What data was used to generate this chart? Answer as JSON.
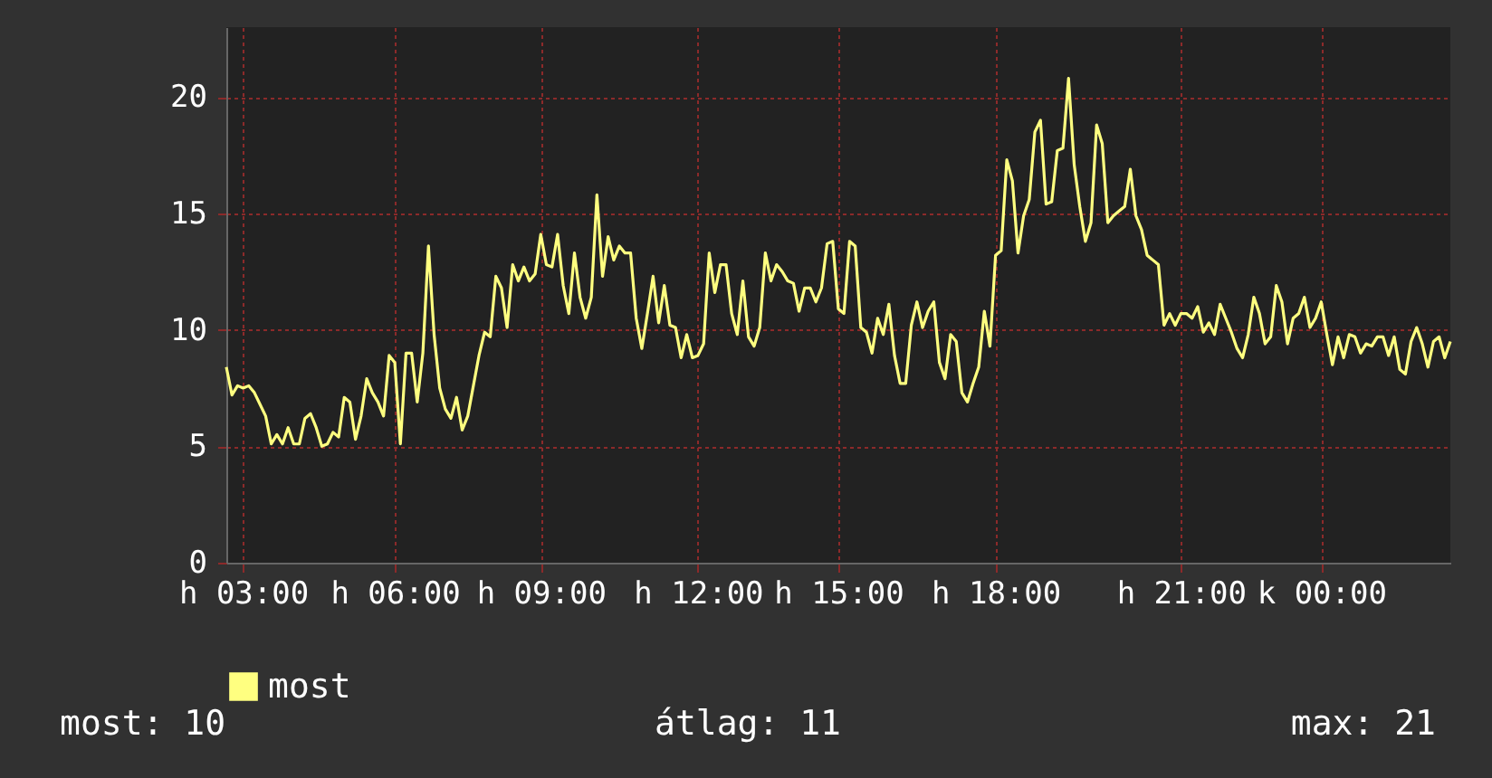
{
  "chart_data": {
    "type": "line",
    "legend": "bottom",
    "grid": true,
    "marker": "none",
    "line_style": "solid",
    "categories": [
      null,
      null,
      null,
      "h 03:00",
      null,
      null,
      null,
      null,
      null,
      null,
      null,
      null,
      null,
      null,
      null,
      null,
      null,
      null,
      null,
      null,
      null,
      null,
      null,
      null,
      null,
      null,
      null,
      null,
      null,
      null,
      "h 06:00",
      null,
      null,
      null,
      null,
      null,
      null,
      null,
      null,
      null,
      null,
      null,
      null,
      null,
      null,
      null,
      null,
      null,
      null,
      null,
      null,
      null,
      null,
      null,
      null,
      null,
      "h 09:00",
      null,
      null,
      null,
      null,
      null,
      null,
      null,
      null,
      null,
      null,
      null,
      null,
      null,
      null,
      null,
      null,
      null,
      null,
      null,
      null,
      null,
      null,
      null,
      null,
      null,
      null,
      null,
      "h 12:00",
      null,
      null,
      null,
      null,
      null,
      null,
      null,
      null,
      null,
      null,
      null,
      null,
      null,
      null,
      null,
      null,
      null,
      null,
      null,
      null,
      null,
      null,
      null,
      null,
      "h 15:00",
      null,
      null,
      null,
      null,
      null,
      null,
      null,
      null,
      null,
      null,
      null,
      null,
      null,
      null,
      null,
      null,
      null,
      null,
      null,
      null,
      null,
      null,
      null,
      null,
      null,
      null,
      null,
      "h 18:00",
      null,
      null,
      null,
      null,
      null,
      null,
      null,
      null,
      null,
      null,
      null,
      null,
      null,
      null,
      null,
      null,
      null,
      null,
      null,
      null,
      null,
      null,
      null,
      null,
      null,
      null,
      null,
      null,
      null,
      null,
      null,
      null,
      "h 21:00",
      null,
      null,
      null,
      null,
      null,
      null,
      null,
      null,
      null,
      null,
      null,
      null,
      null,
      null,
      null,
      null,
      null,
      null,
      null,
      null,
      null,
      null,
      null,
      null,
      "k 00:00",
      null,
      null,
      null,
      null,
      null,
      null,
      null,
      null,
      null,
      null,
      null,
      null,
      null,
      null,
      null,
      null,
      null,
      null,
      null,
      null,
      null,
      null,
      null
    ],
    "ylim": [
      0,
      23
    ],
    "yticks": [
      0,
      5,
      10,
      15,
      20
    ],
    "annotations": [
      "most: 10",
      "átlag: 11",
      "max: 21"
    ],
    "series": [
      {
        "name": "most",
        "color": "#ffff80",
        "values": [
          8.4,
          7.2,
          7.6,
          7.5,
          7.6,
          7.3,
          6.8,
          6.3,
          5.1,
          5.5,
          5.1,
          5.8,
          5.1,
          5.1,
          6.2,
          6.4,
          5.8,
          5.0,
          5.1,
          5.6,
          5.4,
          7.1,
          6.9,
          5.3,
          6.3,
          7.9,
          7.3,
          6.9,
          6.3,
          8.9,
          8.6,
          5.1,
          9.0,
          9.0,
          6.9,
          9.0,
          13.6,
          9.8,
          7.5,
          6.6,
          6.2,
          7.1,
          5.7,
          6.3,
          7.6,
          8.9,
          9.9,
          9.7,
          12.3,
          11.8,
          10.1,
          12.8,
          12.1,
          12.7,
          12.1,
          12.4,
          14.1,
          12.8,
          12.7,
          14.1,
          11.9,
          10.7,
          13.3,
          11.4,
          10.5,
          11.4,
          15.8,
          12.3,
          14.0,
          13.0,
          13.6,
          13.3,
          13.3,
          10.5,
          9.2,
          10.7,
          12.3,
          10.3,
          11.9,
          10.2,
          10.1,
          8.8,
          9.8,
          8.8,
          8.9,
          9.4,
          13.3,
          11.6,
          12.8,
          12.8,
          10.7,
          9.8,
          12.1,
          9.7,
          9.3,
          10.1,
          13.3,
          12.1,
          12.8,
          12.5,
          12.1,
          12.0,
          10.8,
          11.8,
          11.8,
          11.2,
          11.8,
          13.7,
          13.8,
          10.9,
          10.7,
          13.8,
          13.6,
          10.1,
          9.9,
          9.0,
          10.5,
          9.8,
          11.1,
          8.9,
          7.7,
          7.7,
          10.2,
          11.2,
          10.1,
          10.8,
          11.2,
          8.6,
          7.9,
          9.8,
          9.5,
          7.3,
          6.9,
          7.7,
          8.4,
          10.8,
          9.3,
          13.2,
          13.4,
          17.3,
          16.4,
          13.3,
          14.9,
          15.6,
          18.5,
          19.0,
          15.4,
          15.5,
          17.7,
          17.8,
          20.8,
          17.1,
          15.3,
          13.8,
          14.6,
          18.8,
          18.0,
          14.6,
          14.9,
          15.1,
          15.3,
          16.9,
          14.9,
          14.3,
          13.2,
          13.0,
          12.8,
          10.2,
          10.7,
          10.2,
          10.7,
          10.7,
          10.5,
          11.0,
          9.9,
          10.3,
          9.8,
          11.1,
          10.5,
          9.9,
          9.2,
          8.8,
          9.8,
          11.4,
          10.7,
          9.4,
          9.7,
          11.9,
          11.2,
          9.4,
          10.5,
          10.7,
          11.4,
          10.1,
          10.5,
          11.2,
          9.8,
          8.5,
          9.7,
          8.8,
          9.8,
          9.7,
          9.0,
          9.4,
          9.3,
          9.7,
          9.7,
          8.9,
          9.7,
          8.3,
          8.1,
          9.5,
          10.1,
          9.4,
          8.4,
          9.5,
          9.7,
          8.8,
          9.5
        ]
      }
    ]
  }
}
